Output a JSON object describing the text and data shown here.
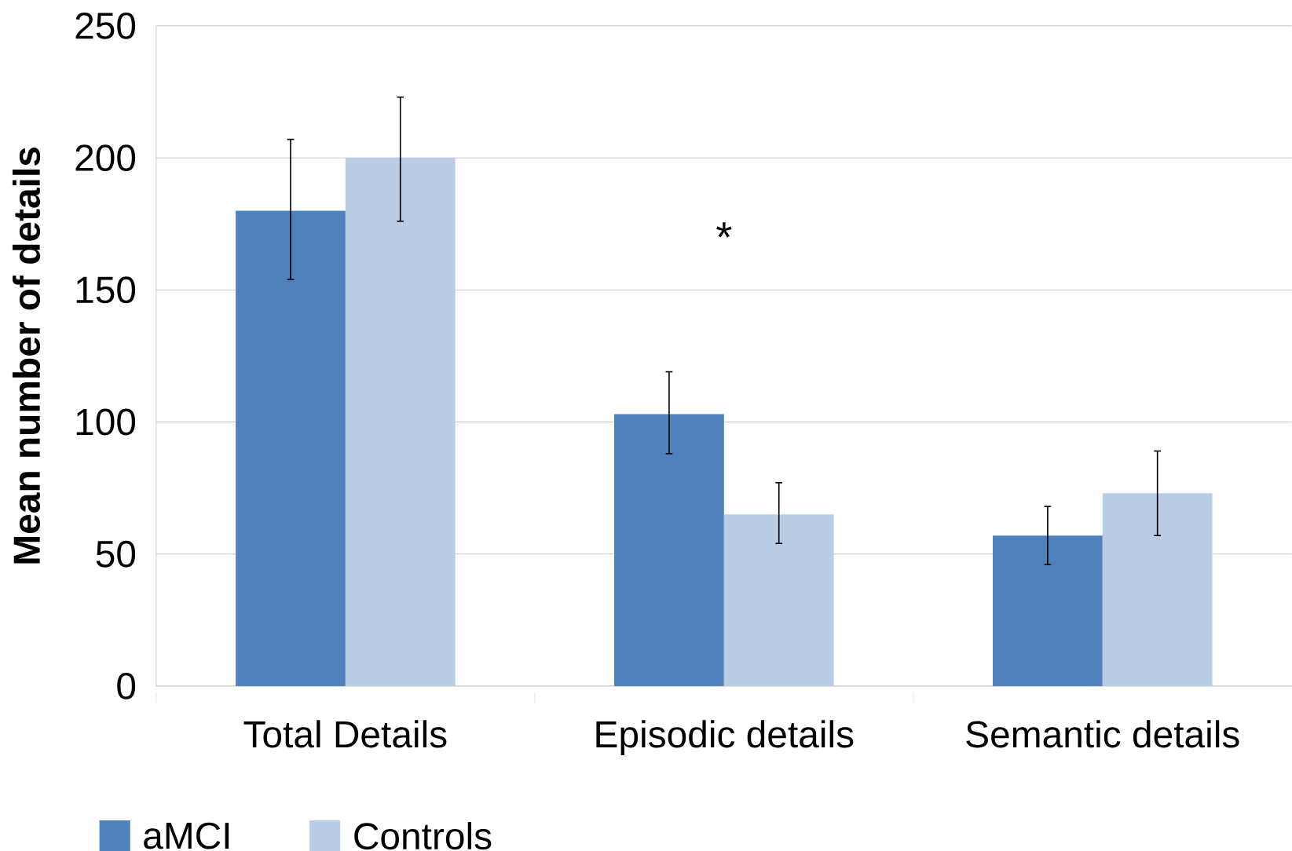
{
  "chart_data": {
    "type": "bar",
    "ylabel": "Mean number of details",
    "categories": [
      "Total Details",
      "Episodic details",
      "Semantic details"
    ],
    "series": [
      {
        "name": "aMCI",
        "color": "#4f81bd",
        "values": [
          180,
          103,
          57
        ],
        "errors": [
          [
            154,
            207
          ],
          [
            88,
            119
          ],
          [
            46,
            68
          ]
        ]
      },
      {
        "name": "Controls",
        "color": "#b9cde5",
        "values": [
          200,
          65,
          73
        ],
        "errors": [
          [
            176,
            223
          ],
          [
            54,
            77
          ],
          [
            57,
            89
          ]
        ]
      }
    ],
    "ylim": [
      0,
      250
    ],
    "yticks": [
      0,
      50,
      100,
      150,
      200,
      250
    ],
    "grid": "y",
    "legend": "bottom",
    "annotations": [
      "*"
    ]
  }
}
